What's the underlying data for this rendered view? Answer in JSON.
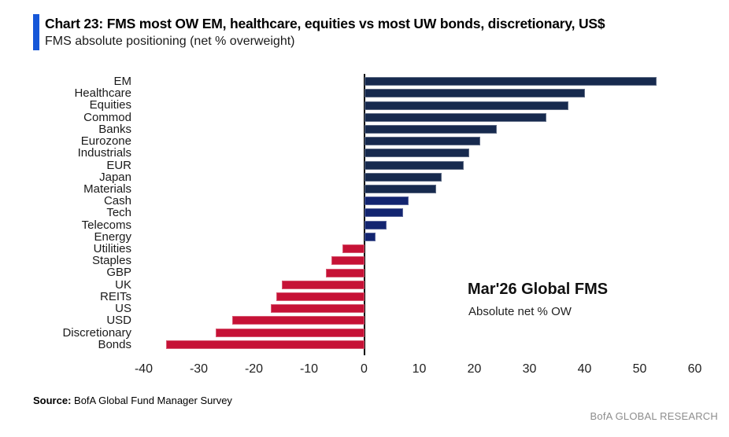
{
  "header": {
    "title": "Chart 23: FMS most OW EM, healthcare, equities vs most UW bonds, discretionary, US$",
    "subtitle": "FMS absolute positioning (net % overweight)",
    "accent_color": "#1657d8"
  },
  "chart_data": {
    "type": "bar",
    "orientation": "horizontal",
    "title": "FMS absolute positioning (net % overweight)",
    "xlabel": "",
    "ylabel": "",
    "xlim": [
      -40,
      60
    ],
    "xticks": [
      -40,
      -30,
      -20,
      -10,
      0,
      10,
      20,
      30,
      40,
      50,
      60
    ],
    "grid": false,
    "legend": false,
    "unit": "net % overweight",
    "palette": {
      "navy": "#172a4e",
      "blue": "#132570",
      "red": "#c61236"
    },
    "bars": [
      {
        "label": "EM",
        "value": 53,
        "color": "navy"
      },
      {
        "label": "Healthcare",
        "value": 40,
        "color": "navy"
      },
      {
        "label": "Equities",
        "value": 37,
        "color": "navy"
      },
      {
        "label": "Commod",
        "value": 33,
        "color": "navy"
      },
      {
        "label": "Banks",
        "value": 24,
        "color": "navy"
      },
      {
        "label": "Eurozone",
        "value": 21,
        "color": "navy"
      },
      {
        "label": "Industrials",
        "value": 19,
        "color": "navy"
      },
      {
        "label": "EUR",
        "value": 18,
        "color": "navy"
      },
      {
        "label": "Japan",
        "value": 14,
        "color": "navy"
      },
      {
        "label": "Materials",
        "value": 13,
        "color": "navy"
      },
      {
        "label": "Cash",
        "value": 8,
        "color": "blue"
      },
      {
        "label": "Tech",
        "value": 7,
        "color": "blue"
      },
      {
        "label": "Telecoms",
        "value": 4,
        "color": "blue"
      },
      {
        "label": "Energy",
        "value": 2,
        "color": "blue"
      },
      {
        "label": "Utilities",
        "value": -4,
        "color": "red"
      },
      {
        "label": "Staples",
        "value": -6,
        "color": "red"
      },
      {
        "label": "GBP",
        "value": -7,
        "color": "red"
      },
      {
        "label": "UK",
        "value": -15,
        "color": "red"
      },
      {
        "label": "REITs",
        "value": -16,
        "color": "red"
      },
      {
        "label": "US",
        "value": -17,
        "color": "red"
      },
      {
        "label": "USD",
        "value": -24,
        "color": "red"
      },
      {
        "label": "Discretionary",
        "value": -27,
        "color": "red"
      },
      {
        "label": "Bonds",
        "value": -36,
        "color": "red"
      }
    ],
    "annotation": {
      "title": "Mar'26 Global FMS",
      "subtitle": "Absolute net % OW"
    }
  },
  "footer": {
    "source_label": "Source:",
    "source_text": "BofA Global Fund Manager Survey",
    "brand": "BofA GLOBAL RESEARCH"
  }
}
